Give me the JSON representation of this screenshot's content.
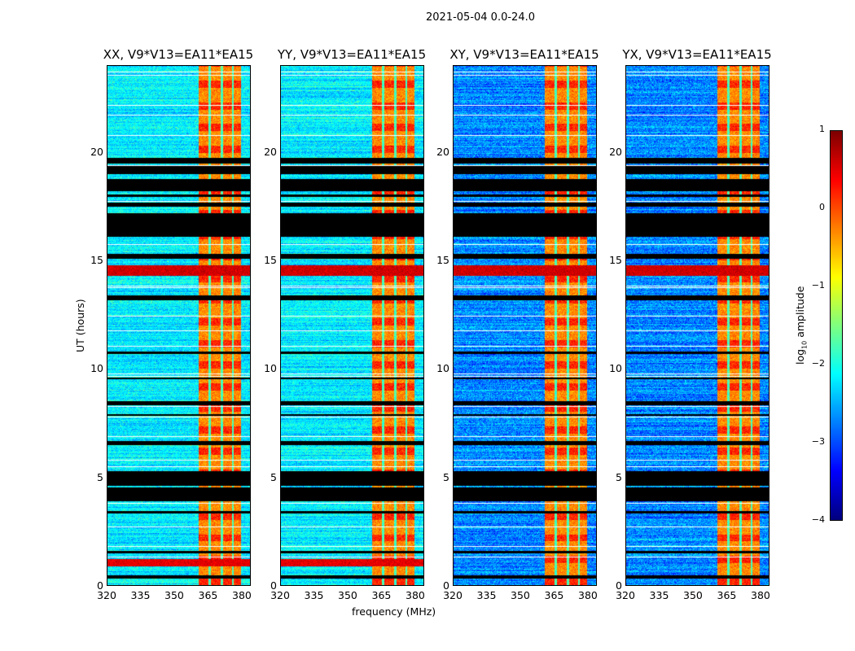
{
  "figure": {
    "suptitle": "2021-05-04 0.0-24.0"
  },
  "chart_data": {
    "type": "heatmap",
    "title": "2021-05-04 0.0-24.0",
    "xlabel": "frequency (MHz)",
    "ylabel": "UT (hours)",
    "xlim": [
      320,
      384
    ],
    "ylim": [
      0,
      24
    ],
    "xticks": [
      "320",
      "335",
      "350",
      "365",
      "380"
    ],
    "xtick_values": [
      320,
      335,
      350,
      365,
      380
    ],
    "yticks": [
      "0",
      "5",
      "10",
      "15",
      "20"
    ],
    "ytick_values": [
      0,
      5,
      10,
      15,
      20
    ],
    "panels": [
      {
        "title": "XX, V9*V13=EA11*EA15",
        "pol": "XX",
        "baseline_log_amp": -2.2,
        "noise": 0.35
      },
      {
        "title": "YY, V9*V13=EA11*EA15",
        "pol": "YY",
        "baseline_log_amp": -2.2,
        "noise": 0.35
      },
      {
        "title": "XY, V9*V13=EA11*EA15",
        "pol": "XY",
        "baseline_log_amp": -2.7,
        "noise": 0.45
      },
      {
        "title": "YX, V9*V13=EA11*EA15",
        "pol": "YX",
        "baseline_log_amp": -2.7,
        "noise": 0.45
      }
    ],
    "rfi_frequency_blocks_mhz": [
      [
        361,
        365.5
      ],
      [
        366.5,
        371
      ],
      [
        372,
        376
      ],
      [
        377,
        380
      ]
    ],
    "rfi_log_amp": -0.3,
    "flagged_ut_ranges": [
      [
        0.3,
        0.45
      ],
      [
        1.45,
        1.55
      ],
      [
        3.3,
        3.4
      ],
      [
        3.86,
        4.5
      ],
      [
        4.57,
        5.25
      ],
      [
        6.45,
        6.65
      ],
      [
        7.8,
        7.9
      ],
      [
        8.3,
        8.5
      ],
      [
        9.5,
        9.6
      ],
      [
        10.7,
        10.8
      ],
      [
        13.15,
        13.4
      ],
      [
        15.1,
        15.3
      ],
      [
        16.1,
        17.2
      ],
      [
        17.5,
        17.7
      ],
      [
        17.95,
        18.05
      ],
      [
        18.2,
        18.8
      ],
      [
        19.0,
        19.4
      ],
      [
        19.5,
        19.75
      ]
    ],
    "bright_ut_ranges": [
      {
        "range": [
          14.3,
          14.8
        ],
        "log_amp": 0.6,
        "pols": [
          "XX",
          "YY",
          "XY",
          "YX"
        ]
      },
      {
        "range": [
          0.85,
          1.2
        ],
        "log_amp": 0.5,
        "pols": [
          "XX",
          "YY"
        ]
      }
    ],
    "colorbar": {
      "label": "log10 amplitude",
      "label_main": "log",
      "label_sub": "10",
      "label_rest": " amplitude",
      "range": [
        -4,
        1
      ],
      "ticks": [
        "1",
        "0",
        "−1",
        "−2",
        "−3",
        "−4"
      ],
      "tick_values": [
        1,
        0,
        -1,
        -2,
        -3,
        -4
      ],
      "colormap": "jet",
      "flag_color": "#000000"
    }
  }
}
